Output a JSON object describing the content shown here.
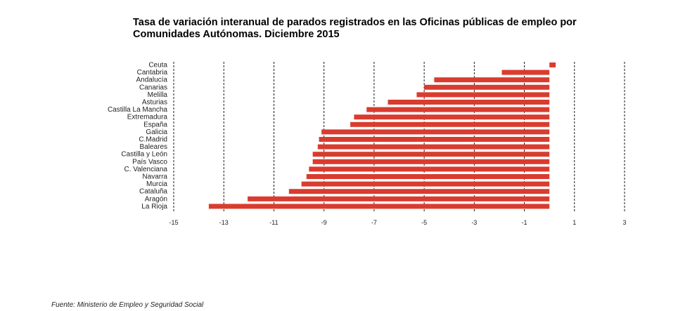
{
  "chart_data": {
    "type": "bar",
    "orientation": "horizontal",
    "title": "Tasa de variación interanual de parados registrados en las Oficinas públicas de empleo por Comunidades Autónomas.  Diciembre 2015",
    "xlabel": "",
    "ylabel": "",
    "xlim": [
      -15,
      3
    ],
    "xticks": [
      -15,
      -13,
      -11,
      -9,
      -7,
      -5,
      -3,
      -1,
      1,
      3
    ],
    "xtick_labels": [
      "-15",
      "-13",
      "-11",
      "-9",
      "-7",
      "-5",
      "-3",
      "-1",
      "1",
      "3"
    ],
    "grid": "vertical dashed",
    "bar_color": "#d93c2f",
    "categories": [
      "Ceuta",
      "Cantabria",
      "Andalucía",
      "Canarias",
      "Melilla",
      "Asturias",
      "Castilla La Mancha",
      "Extremadura",
      "España",
      "Galicia",
      "C.Madrid",
      "Baleares",
      "Castilla y León",
      "País Vasco",
      "C. Valenciana",
      "Navarra",
      "Murcia",
      "Cataluña",
      "Aragón",
      "La Rioja"
    ],
    "values": [
      0.25,
      -1.9,
      -4.6,
      -5.0,
      -5.3,
      -6.45,
      -7.3,
      -7.8,
      -7.95,
      -9.1,
      -9.2,
      -9.25,
      -9.45,
      -9.45,
      -9.6,
      -9.7,
      -9.9,
      -10.4,
      -12.05,
      -13.6
    ]
  },
  "footer": {
    "source": "Fuente: Ministerio de Empleo y Seguridad Social"
  }
}
